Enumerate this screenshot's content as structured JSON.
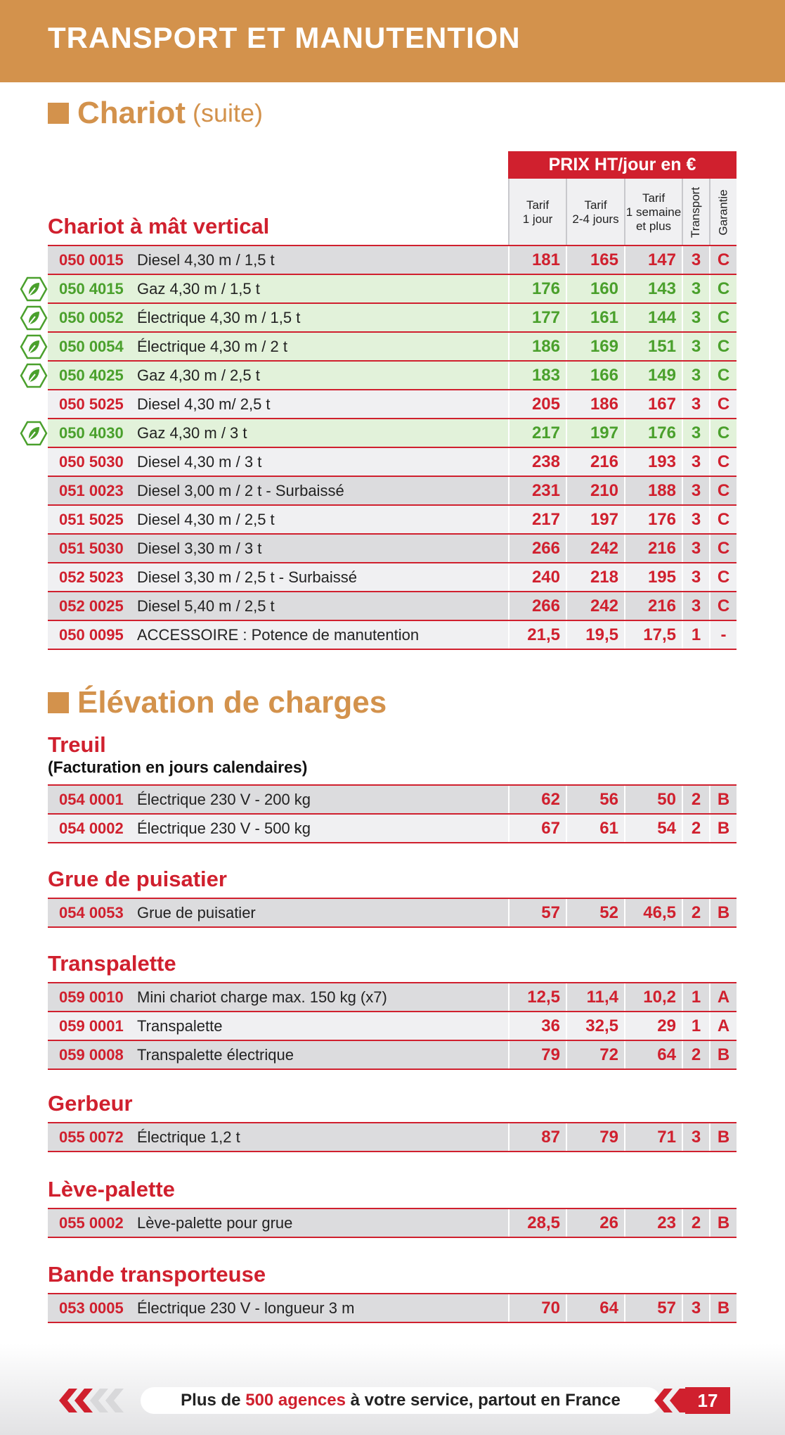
{
  "header": {
    "title": "TRANSPORT ET MANUTENTION"
  },
  "chariot": {
    "title": "Chariot",
    "suffix": "(suite)"
  },
  "price_header": {
    "title": "PRIX HT/jour en €",
    "columns": [
      [
        "Tarif",
        "1 jour"
      ],
      [
        "Tarif",
        "2-4 jours"
      ],
      [
        "Tarif",
        "1 semaine",
        "et plus"
      ],
      [
        "Transport"
      ],
      [
        "Garantie"
      ]
    ]
  },
  "elevation": {
    "title": "Élévation de charges"
  },
  "groups": [
    {
      "title": "Chariot à mât vertical",
      "rows": [
        {
          "cells": [
            "050 0015",
            "Diesel 4,30 m / 1,5 t",
            "181",
            "165",
            "147",
            "3",
            "C"
          ],
          "eco": false
        },
        {
          "cells": [
            "050 4015",
            "Gaz 4,30 m / 1,5 t",
            "176",
            "160",
            "143",
            "3",
            "C"
          ],
          "eco": true
        },
        {
          "cells": [
            "050 0052",
            "Électrique 4,30 m / 1,5 t",
            "177",
            "161",
            "144",
            "3",
            "C"
          ],
          "eco": true
        },
        {
          "cells": [
            "050 0054",
            "Électrique 4,30 m / 2 t",
            "186",
            "169",
            "151",
            "3",
            "C"
          ],
          "eco": true
        },
        {
          "cells": [
            "050 4025",
            "Gaz 4,30 m / 2,5 t",
            "183",
            "166",
            "149",
            "3",
            "C"
          ],
          "eco": true
        },
        {
          "cells": [
            "050 5025",
            "Diesel 4,30 m/ 2,5 t",
            "205",
            "186",
            "167",
            "3",
            "C"
          ],
          "eco": false
        },
        {
          "cells": [
            "050 4030",
            "Gaz 4,30 m / 3 t",
            "217",
            "197",
            "176",
            "3",
            "C"
          ],
          "eco": true
        },
        {
          "cells": [
            "050 5030",
            "Diesel 4,30 m / 3 t",
            "238",
            "216",
            "193",
            "3",
            "C"
          ],
          "eco": false
        },
        {
          "cells": [
            "051 0023",
            "Diesel 3,00 m / 2 t - Surbaissé",
            "231",
            "210",
            "188",
            "3",
            "C"
          ],
          "eco": false
        },
        {
          "cells": [
            "051 5025",
            "Diesel 4,30 m / 2,5 t",
            "217",
            "197",
            "176",
            "3",
            "C"
          ],
          "eco": false
        },
        {
          "cells": [
            "051 5030",
            "Diesel 3,30 m / 3 t",
            "266",
            "242",
            "216",
            "3",
            "C"
          ],
          "eco": false
        },
        {
          "cells": [
            "052 5023",
            "Diesel 3,30 m / 2,5 t - Surbaissé",
            "240",
            "218",
            "195",
            "3",
            "C"
          ],
          "eco": false
        },
        {
          "cells": [
            "052 0025",
            "Diesel 5,40 m / 2,5 t",
            "266",
            "242",
            "216",
            "3",
            "C"
          ],
          "eco": false
        },
        {
          "cells": [
            "050 0095",
            "ACCESSOIRE : Potence de manutention",
            "21,5",
            "19,5",
            "17,5",
            "1",
            "-"
          ],
          "eco": false
        }
      ]
    },
    {
      "title": "Treuil",
      "note": "(Facturation en jours calendaires)",
      "rows": [
        {
          "cells": [
            "054 0001",
            "Électrique 230 V - 200 kg",
            "62",
            "56",
            "50",
            "2",
            "B"
          ],
          "eco": false
        },
        {
          "cells": [
            "054 0002",
            "Électrique 230 V - 500 kg",
            "67",
            "61",
            "54",
            "2",
            "B"
          ],
          "eco": false
        }
      ]
    },
    {
      "title": "Grue de puisatier",
      "rows": [
        {
          "cells": [
            "054 0053",
            "Grue de puisatier",
            "57",
            "52",
            "46,5",
            "2",
            "B"
          ],
          "eco": false
        }
      ]
    },
    {
      "title": "Transpalette",
      "rows": [
        {
          "cells": [
            "059 0010",
            "Mini chariot charge max. 150 kg (x7)",
            "12,5",
            "11,4",
            "10,2",
            "1",
            "A"
          ],
          "eco": false
        },
        {
          "cells": [
            "059 0001",
            "Transpalette",
            "36",
            "32,5",
            "29",
            "1",
            "A"
          ],
          "eco": false
        },
        {
          "cells": [
            "059 0008",
            "Transpalette électrique",
            "79",
            "72",
            "64",
            "2",
            "B"
          ],
          "eco": false
        }
      ]
    },
    {
      "title": "Gerbeur",
      "rows": [
        {
          "cells": [
            "055 0072",
            "Électrique 1,2 t",
            "87",
            "79",
            "71",
            "3",
            "B"
          ],
          "eco": false
        }
      ]
    },
    {
      "title": "Lève-palette",
      "rows": [
        {
          "cells": [
            "055 0002",
            "Lève-palette pour grue",
            "28,5",
            "26",
            "23",
            "2",
            "B"
          ],
          "eco": false
        }
      ]
    },
    {
      "title": "Bande transporteuse",
      "rows": [
        {
          "cells": [
            "053 0005",
            "Électrique 230 V - longueur 3 m",
            "70",
            "64",
            "57",
            "3",
            "B"
          ],
          "eco": false
        }
      ]
    }
  ],
  "footer": {
    "text_before": "Plus de",
    "highlight": "500 agences",
    "text_after": "à votre service, partout en France",
    "page": "17"
  }
}
